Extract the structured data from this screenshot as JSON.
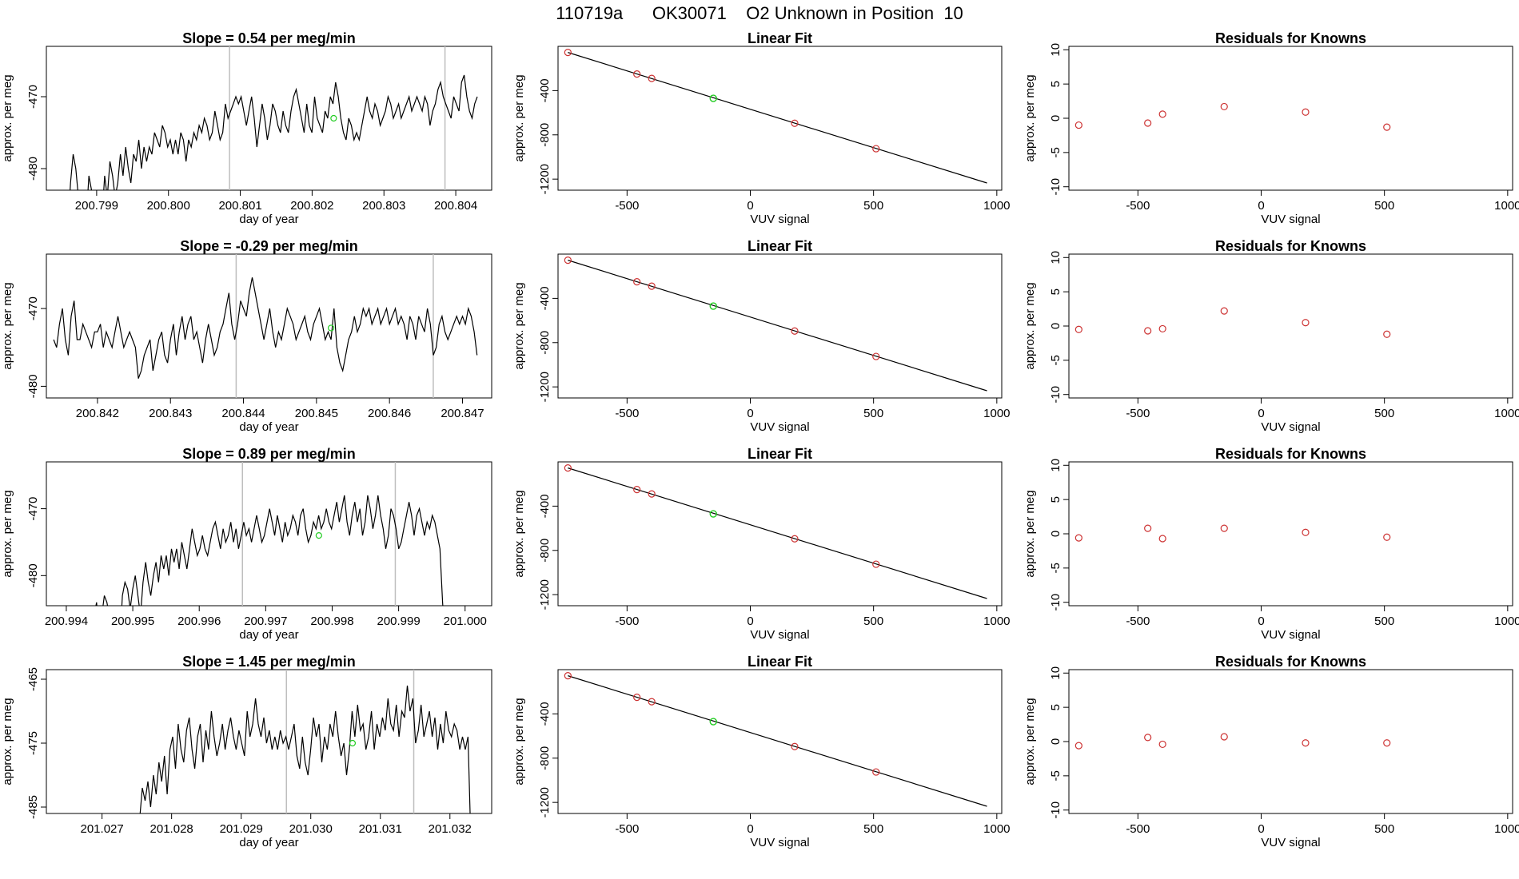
{
  "figure": {
    "title": "110719a      OK30071    O2 Unknown in Position  10"
  },
  "colors": {
    "line": "#000000",
    "known_points": "#cd3333",
    "unknown_point": "#22cc22",
    "vertical_markers": "#bebebe"
  },
  "chart_data": [
    {
      "type": "line",
      "panel": "timeseries",
      "row": 1,
      "title": "Slope =  0.54  per meg/min",
      "xlabel": "day of year",
      "ylabel": "approx. per meg",
      "xlim": [
        200.7983,
        200.8045
      ],
      "ylim": [
        -483,
        -463
      ],
      "xticks": [
        200.799,
        200.8,
        200.801,
        200.802,
        200.803,
        200.804
      ],
      "xtick_labels": [
        "200.799",
        "200.800",
        "200.801",
        "200.802",
        "200.803",
        "200.804"
      ],
      "yticks": [
        -480,
        -470
      ],
      "ytick_labels": [
        "-480",
        "-470"
      ],
      "vlines": [
        200.80085,
        200.80385
      ],
      "series_start": 200.7986,
      "series_end": 200.8043,
      "series_values": [
        -488,
        -482,
        -478,
        -480,
        -484,
        -486,
        -483,
        -487,
        -481,
        -483,
        -485,
        -486,
        -484,
        -487,
        -481,
        -484,
        -479,
        -481,
        -484,
        -482,
        -478,
        -481,
        -477,
        -480,
        -482,
        -478,
        -479,
        -476,
        -480,
        -477,
        -479,
        -477,
        -478,
        -475,
        -476,
        -477,
        -474,
        -475,
        -477,
        -476,
        -478,
        -476,
        -478,
        -475,
        -476,
        -479,
        -476,
        -477,
        -475,
        -476,
        -474,
        -475,
        -473,
        -474,
        -476,
        -475,
        -472,
        -474,
        -476,
        -475,
        -471,
        -473,
        -472,
        -471,
        -470,
        -471,
        -470,
        -472,
        -474,
        -472,
        -470,
        -473,
        -477,
        -474,
        -471,
        -473,
        -476,
        -474,
        -471,
        -472,
        -474,
        -475,
        -472,
        -474,
        -475,
        -472,
        -470,
        -469,
        -471,
        -473,
        -475,
        -471,
        -474,
        -475,
        -470,
        -473,
        -474,
        -475,
        -472,
        -473,
        -470,
        -471,
        -468,
        -470,
        -473,
        -475,
        -476,
        -473,
        -474,
        -476,
        -475,
        -476,
        -474,
        -472,
        -470,
        -472,
        -473,
        -471,
        -472,
        -474,
        -473,
        -472,
        -470,
        -471,
        -473,
        -472,
        -471,
        -473,
        -472,
        -471,
        -470,
        -472,
        -471,
        -470,
        -471,
        -472,
        -470,
        -471,
        -474,
        -472,
        -471,
        -469,
        -468,
        -470,
        -471,
        -472,
        -473,
        -470,
        -471,
        -472,
        -468,
        -467,
        -470,
        -472,
        -473,
        -471,
        -470
      ],
      "unknown_point": {
        "x": 200.8023,
        "y": -473
      }
    },
    {
      "type": "scatter",
      "panel": "linear_fit",
      "row": 1,
      "title": "Linear Fit",
      "xlabel": "VUV signal",
      "ylabel": "approx. per meg",
      "xlim": [
        -780,
        1020
      ],
      "ylim": [
        -1300,
        0
      ],
      "xticks": [
        -500,
        0,
        500,
        1000
      ],
      "xtick_labels": [
        "-500",
        "0",
        "500",
        "1000"
      ],
      "yticks": [
        -1200,
        -800,
        -400
      ],
      "ytick_labels": [
        "-1200",
        "-800",
        "-400"
      ],
      "fit_line": {
        "x": [
          -740,
          960
        ],
        "y": [
          -55,
          -1235
        ]
      },
      "known_points": {
        "x": [
          -740,
          -460,
          -400,
          180,
          510
        ],
        "y": [
          -55,
          -250,
          -290,
          -695,
          -925
        ]
      },
      "unknown_point": {
        "x": -150,
        "y": -470
      }
    },
    {
      "type": "scatter",
      "panel": "residuals",
      "row": 1,
      "title": "Residuals for Knowns",
      "xlabel": "VUV signal",
      "ylabel": "approx. per meg",
      "xlim": [
        -780,
        1020
      ],
      "ylim": [
        -10.5,
        10.5
      ],
      "xticks": [
        -500,
        0,
        500,
        1000
      ],
      "xtick_labels": [
        "-500",
        "0",
        "500",
        "1000"
      ],
      "yticks": [
        -10,
        -5,
        0,
        5,
        10
      ],
      "ytick_labels": [
        "-10",
        "-5",
        "0",
        "5",
        "10"
      ],
      "points": {
        "x": [
          -740,
          -460,
          -400,
          -150,
          180,
          510
        ],
        "y": [
          -1.0,
          -0.7,
          0.6,
          1.7,
          0.9,
          -1.3
        ]
      }
    },
    {
      "type": "line",
      "panel": "timeseries",
      "row": 2,
      "title": "Slope =  -0.29  per meg/min",
      "xlabel": "day of year",
      "ylabel": "approx. per meg",
      "xlim": [
        200.8413,
        200.8474
      ],
      "ylim": [
        -481.5,
        -463
      ],
      "xticks": [
        200.842,
        200.843,
        200.844,
        200.845,
        200.846,
        200.847
      ],
      "xtick_labels": [
        "200.842",
        "200.843",
        "200.844",
        "200.845",
        "200.846",
        "200.847"
      ],
      "yticks": [
        -480,
        -470
      ],
      "ytick_labels": [
        "-480",
        "-470"
      ],
      "vlines": [
        200.8439,
        200.8466
      ],
      "series_start": 200.8414,
      "series_end": 200.8472,
      "series_values": [
        -474,
        -475,
        -472,
        -470,
        -474,
        -476,
        -471,
        -469,
        -474,
        -474,
        -472,
        -473,
        -474,
        -475,
        -473,
        -473,
        -472,
        -475,
        -473,
        -474,
        -475,
        -473,
        -471,
        -473,
        -475,
        -474,
        -473,
        -474,
        -475,
        -479,
        -478,
        -476,
        -475,
        -474,
        -478,
        -476,
        -474,
        -473,
        -476,
        -477,
        -474,
        -472,
        -476,
        -473,
        -471,
        -474,
        -472,
        -471,
        -474,
        -473,
        -475,
        -477,
        -474,
        -472,
        -474,
        -476,
        -475,
        -473,
        -472,
        -470,
        -468,
        -472,
        -474,
        -472,
        -469,
        -470,
        -471,
        -468,
        -466,
        -468,
        -470,
        -472,
        -474,
        -472,
        -470,
        -473,
        -475,
        -473,
        -474,
        -472,
        -470,
        -471,
        -472,
        -474,
        -473,
        -472,
        -471,
        -473,
        -474,
        -472,
        -471,
        -470,
        -472,
        -474,
        -473,
        -474,
        -470,
        -475,
        -477,
        -478,
        -476,
        -474,
        -473,
        -471,
        -473,
        -472,
        -470,
        -471,
        -470,
        -472,
        -471,
        -470,
        -472,
        -471,
        -470,
        -472,
        -471,
        -470,
        -472,
        -471,
        -472,
        -474,
        -471,
        -472,
        -474,
        -471,
        -472,
        -473,
        -470,
        -472,
        -476,
        -475,
        -472,
        -471,
        -473,
        -474,
        -473,
        -472,
        -471,
        -472,
        -471,
        -472,
        -470,
        -471,
        -473,
        -476
      ],
      "unknown_point": {
        "x": 200.8452,
        "y": -472.5
      }
    },
    {
      "type": "scatter",
      "panel": "linear_fit",
      "row": 2,
      "title": "Linear Fit",
      "xlabel": "VUV signal",
      "ylabel": "approx. per meg",
      "xlim": [
        -780,
        1020
      ],
      "ylim": [
        -1300,
        0
      ],
      "xticks": [
        -500,
        0,
        500,
        1000
      ],
      "xtick_labels": [
        "-500",
        "0",
        "500",
        "1000"
      ],
      "yticks": [
        -1200,
        -800,
        -400
      ],
      "ytick_labels": [
        "-1200",
        "-800",
        "-400"
      ],
      "fit_line": {
        "x": [
          -740,
          960
        ],
        "y": [
          -55,
          -1235
        ]
      },
      "known_points": {
        "x": [
          -740,
          -460,
          -400,
          180,
          510
        ],
        "y": [
          -55,
          -250,
          -290,
          -695,
          -925
        ]
      },
      "unknown_point": {
        "x": -150,
        "y": -470
      }
    },
    {
      "type": "scatter",
      "panel": "residuals",
      "row": 2,
      "title": "Residuals for Knowns",
      "xlabel": "VUV signal",
      "ylabel": "approx. per meg",
      "xlim": [
        -780,
        1020
      ],
      "ylim": [
        -10.5,
        10.5
      ],
      "xticks": [
        -500,
        0,
        500,
        1000
      ],
      "xtick_labels": [
        "-500",
        "0",
        "500",
        "1000"
      ],
      "yticks": [
        -10,
        -5,
        0,
        5,
        10
      ],
      "ytick_labels": [
        "-10",
        "-5",
        "0",
        "5",
        "10"
      ],
      "points": {
        "x": [
          -740,
          -460,
          -400,
          -150,
          180,
          510
        ],
        "y": [
          -0.5,
          -0.7,
          -0.4,
          2.2,
          0.5,
          -1.2
        ]
      }
    },
    {
      "type": "line",
      "panel": "timeseries",
      "row": 3,
      "title": "Slope =  0.89  per meg/min",
      "xlabel": "day of year",
      "ylabel": "approx. per meg",
      "xlim": [
        200.9937,
        201.0004
      ],
      "ylim": [
        -484.5,
        -463
      ],
      "xticks": [
        200.994,
        200.995,
        200.996,
        200.997,
        200.998,
        200.999,
        201.0
      ],
      "xtick_labels": [
        "200.994",
        "200.995",
        "200.996",
        "200.997",
        "200.998",
        "200.999",
        "201.000"
      ],
      "yticks": [
        -480,
        -470
      ],
      "ytick_labels": [
        "-480",
        "-470"
      ],
      "vlines": [
        200.99665,
        200.99895
      ],
      "series_start": 200.9943,
      "series_end": 200.9997,
      "series_values": [
        -490,
        -485,
        -488,
        -486,
        -484,
        -489,
        -486,
        -483,
        -484,
        -486,
        -489,
        -485,
        -487,
        -490,
        -483,
        -481,
        -482,
        -485,
        -482,
        -480,
        -483,
        -486,
        -481,
        -478,
        -481,
        -483,
        -480,
        -478,
        -481,
        -477,
        -479,
        -477,
        -480,
        -476,
        -478,
        -476,
        -479,
        -475,
        -477,
        -479,
        -476,
        -473,
        -475,
        -477,
        -476,
        -474,
        -476,
        -477,
        -475,
        -473,
        -472,
        -474,
        -476,
        -473,
        -475,
        -474,
        -472,
        -475,
        -473,
        -476,
        -474,
        -472,
        -474,
        -473,
        -475,
        -473,
        -471,
        -473,
        -475,
        -474,
        -472,
        -470,
        -472,
        -474,
        -471,
        -473,
        -475,
        -472,
        -474,
        -473,
        -471,
        -472,
        -474,
        -471,
        -470,
        -473,
        -475,
        -474,
        -472,
        -473,
        -471,
        -473,
        -472,
        -470,
        -472,
        -473,
        -471,
        -469,
        -472,
        -470,
        -468,
        -472,
        -474,
        -471,
        -469,
        -472,
        -470,
        -474,
        -472,
        -468,
        -470,
        -473,
        -471,
        -468,
        -471,
        -473,
        -476,
        -474,
        -470,
        -471,
        -473,
        -476,
        -475,
        -473,
        -471,
        -469,
        -471,
        -474,
        -471,
        -470,
        -472,
        -474,
        -472,
        -473,
        -471,
        -472,
        -474,
        -476,
        -484,
        -490
      ],
      "unknown_point": {
        "x": 200.9978,
        "y": -474
      }
    },
    {
      "type": "scatter",
      "panel": "linear_fit",
      "row": 3,
      "title": "Linear Fit",
      "xlabel": "VUV signal",
      "ylabel": "approx. per meg",
      "xlim": [
        -780,
        1020
      ],
      "ylim": [
        -1300,
        0
      ],
      "xticks": [
        -500,
        0,
        500,
        1000
      ],
      "xtick_labels": [
        "-500",
        "0",
        "500",
        "1000"
      ],
      "yticks": [
        -1200,
        -800,
        -400
      ],
      "ytick_labels": [
        "-1200",
        "-800",
        "-400"
      ],
      "fit_line": {
        "x": [
          -740,
          960
        ],
        "y": [
          -55,
          -1235
        ]
      },
      "known_points": {
        "x": [
          -740,
          -460,
          -400,
          180,
          510
        ],
        "y": [
          -55,
          -250,
          -290,
          -695,
          -925
        ]
      },
      "unknown_point": {
        "x": -150,
        "y": -470
      }
    },
    {
      "type": "scatter",
      "panel": "residuals",
      "row": 3,
      "title": "Residuals for Knowns",
      "xlabel": "VUV signal",
      "ylabel": "approx. per meg",
      "xlim": [
        -780,
        1020
      ],
      "ylim": [
        -10.5,
        10.5
      ],
      "xticks": [
        -500,
        0,
        500,
        1000
      ],
      "xtick_labels": [
        "-500",
        "0",
        "500",
        "1000"
      ],
      "yticks": [
        -10,
        -5,
        0,
        5,
        10
      ],
      "ytick_labels": [
        "-10",
        "-5",
        "0",
        "5",
        "10"
      ],
      "points": {
        "x": [
          -740,
          -460,
          -400,
          -150,
          180,
          510
        ],
        "y": [
          -0.6,
          0.8,
          -0.7,
          0.8,
          0.2,
          -0.5
        ]
      }
    },
    {
      "type": "line",
      "panel": "timeseries",
      "row": 4,
      "title": "Slope =  1.45  per meg/min",
      "xlabel": "day of year",
      "ylabel": "approx. per meg",
      "xlim": [
        201.0262,
        201.0326
      ],
      "ylim": [
        -486,
        -463.5
      ],
      "xticks": [
        201.027,
        201.028,
        201.029,
        201.03,
        201.031,
        201.032
      ],
      "xtick_labels": [
        "201.027",
        "201.028",
        "201.029",
        "201.030",
        "201.031",
        "201.032"
      ],
      "yticks": [
        -485,
        -475,
        -465
      ],
      "ytick_labels": [
        "-485",
        "-475",
        "-465"
      ],
      "vlines": [
        201.02965,
        201.03148
      ],
      "series_start": 201.0275,
      "series_end": 201.0323,
      "series_values": [
        -490,
        -487,
        -482,
        -484,
        -481,
        -485,
        -480,
        -483,
        -478,
        -481,
        -477,
        -483,
        -476,
        -474,
        -479,
        -472,
        -476,
        -478,
        -473,
        -471,
        -476,
        -479,
        -474,
        -472,
        -478,
        -473,
        -476,
        -470,
        -474,
        -477,
        -475,
        -472,
        -476,
        -473,
        -471,
        -474,
        -476,
        -473,
        -475,
        -477,
        -470,
        -474,
        -472,
        -468,
        -472,
        -474,
        -471,
        -475,
        -473,
        -476,
        -474,
        -476,
        -473,
        -475,
        -474,
        -476,
        -474,
        -472,
        -477,
        -479,
        -474,
        -478,
        -480,
        -476,
        -471,
        -474,
        -472,
        -478,
        -474,
        -476,
        -472,
        -474,
        -470,
        -474,
        -477,
        -475,
        -480,
        -476,
        -470,
        -474,
        -469,
        -473,
        -472,
        -476,
        -474,
        -470,
        -476,
        -472,
        -474,
        -471,
        -473,
        -468,
        -472,
        -473,
        -469,
        -474,
        -470,
        -471,
        -466,
        -470,
        -468,
        -475,
        -473,
        -469,
        -474,
        -472,
        -470,
        -474,
        -471,
        -476,
        -472,
        -475,
        -470,
        -473,
        -474,
        -472,
        -473,
        -476,
        -474,
        -476,
        -474,
        -490
      ],
      "unknown_point": {
        "x": 201.0306,
        "y": -475
      }
    },
    {
      "type": "scatter",
      "panel": "linear_fit",
      "row": 4,
      "title": "Linear Fit",
      "xlabel": "VUV signal",
      "ylabel": "approx. per meg",
      "xlim": [
        -780,
        1020
      ],
      "ylim": [
        -1300,
        0
      ],
      "xticks": [
        -500,
        0,
        500,
        1000
      ],
      "xtick_labels": [
        "-500",
        "0",
        "500",
        "1000"
      ],
      "yticks": [
        -1200,
        -800,
        -400
      ],
      "ytick_labels": [
        "-1200",
        "-800",
        "-400"
      ],
      "fit_line": {
        "x": [
          -740,
          960
        ],
        "y": [
          -55,
          -1235
        ]
      },
      "known_points": {
        "x": [
          -740,
          -460,
          -400,
          180,
          510
        ],
        "y": [
          -55,
          -250,
          -290,
          -695,
          -925
        ]
      },
      "unknown_point": {
        "x": -150,
        "y": -470
      }
    },
    {
      "type": "scatter",
      "panel": "residuals",
      "row": 4,
      "title": "Residuals for Knowns",
      "xlabel": "VUV signal",
      "ylabel": "approx. per meg",
      "xlim": [
        -780,
        1020
      ],
      "ylim": [
        -10.5,
        10.5
      ],
      "xticks": [
        -500,
        0,
        500,
        1000
      ],
      "xtick_labels": [
        "-500",
        "0",
        "500",
        "1000"
      ],
      "yticks": [
        -10,
        -5,
        0,
        5,
        10
      ],
      "ytick_labels": [
        "-10",
        "-5",
        "0",
        "5",
        "10"
      ],
      "points": {
        "x": [
          -740,
          -460,
          -400,
          -150,
          180,
          510
        ],
        "y": [
          -0.6,
          0.6,
          -0.4,
          0.7,
          -0.2,
          -0.2
        ]
      }
    }
  ]
}
